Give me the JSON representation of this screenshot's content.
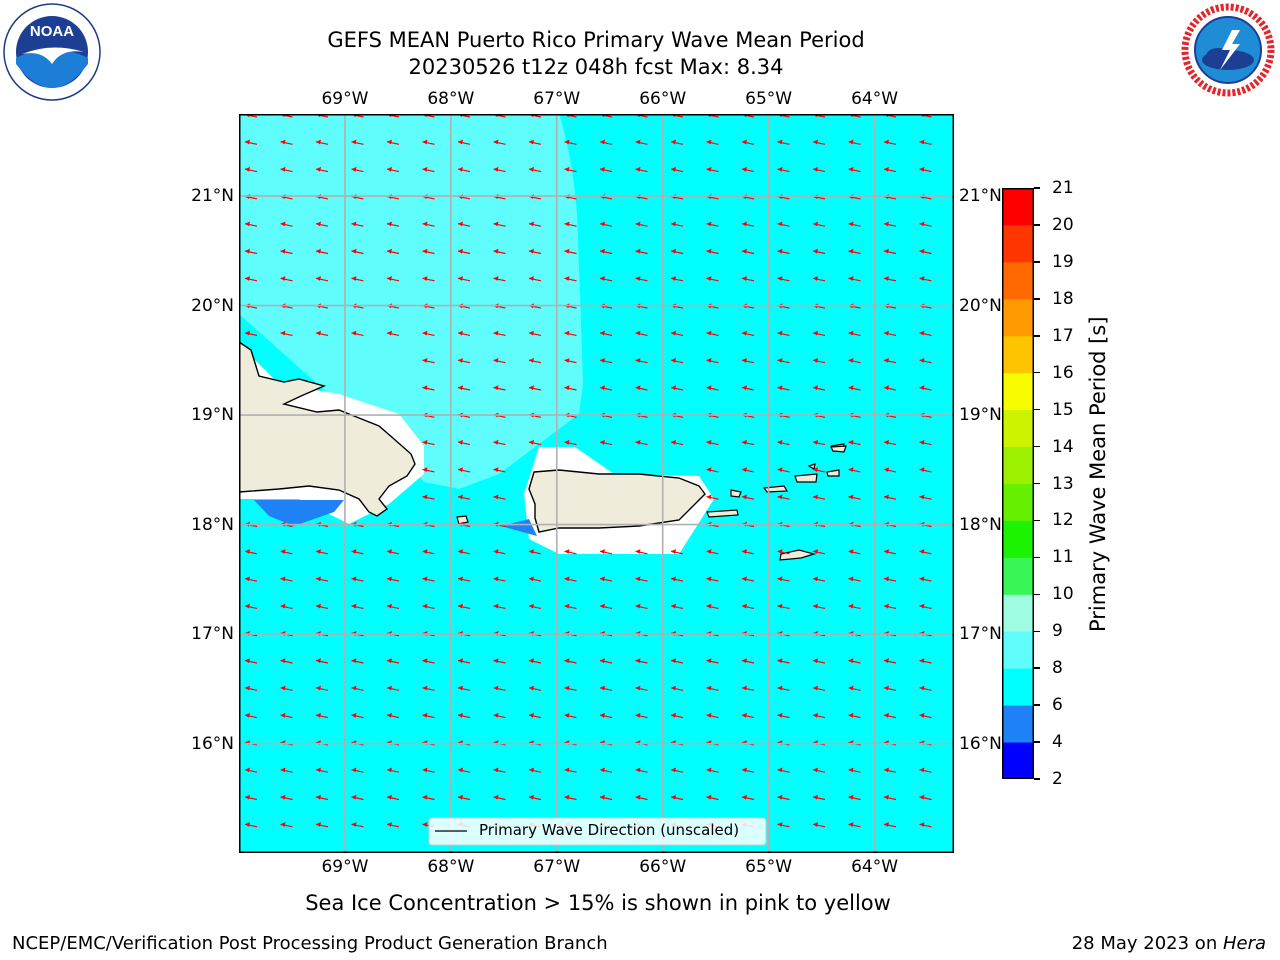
{
  "title": {
    "line1": "GEFS MEAN Puerto Rico Primary Wave Mean Period",
    "line2": "20230526 t12z 048h fcst   Max: 8.34"
  },
  "logos": {
    "left": {
      "text": "NOAA",
      "ring_text": "NATIONAL OCEANIC AND ATMOSPHERIC ADMINISTRATION · U.S. DEPARTMENT OF COMMERCE"
    },
    "right": {
      "ring_text": "NATIONAL WEATHER SERVICE"
    }
  },
  "map": {
    "lon_ticks": [
      "69°W",
      "68°W",
      "67°W",
      "66°W",
      "65°W",
      "64°W"
    ],
    "lat_ticks": [
      "21°N",
      "20°N",
      "19°N",
      "18°N",
      "17°N",
      "16°N"
    ],
    "lon_range": [
      -70.0,
      -63.25
    ],
    "lat_range": [
      15.0,
      21.75
    ],
    "ocean_color": "#00ffff",
    "high_period_color": "#5ffdfc",
    "low_period_color": "#1e81f6",
    "land_color": "#efecdc",
    "arrow_color": "#ff0000",
    "legend": "Primary Wave Direction (unscaled)"
  },
  "colorbar": {
    "title": "Primary Wave Mean Period [s]",
    "levels": [
      "2",
      "4",
      "6",
      "8",
      "9",
      "10",
      "11",
      "12",
      "13",
      "14",
      "15",
      "16",
      "17",
      "18",
      "19",
      "20",
      "21"
    ],
    "colors": [
      "#0000ff",
      "#1e81f6",
      "#00ffff",
      "#5ffdfc",
      "#9efde0",
      "#39f556",
      "#1cf300",
      "#64f000",
      "#9cf000",
      "#cdf300",
      "#f9fc00",
      "#ffff00",
      "#ffc400",
      "#ff9900",
      "#ff6900",
      "#ff3600",
      "#ff0000"
    ]
  },
  "caption": "Sea Ice Concentration > 15% is shown in pink to yellow",
  "footer": {
    "left": "NCEP/EMC/Verification Post Processing Product Generation Branch",
    "right_date": "28 May 2023 on ",
    "right_host": "Hera"
  }
}
